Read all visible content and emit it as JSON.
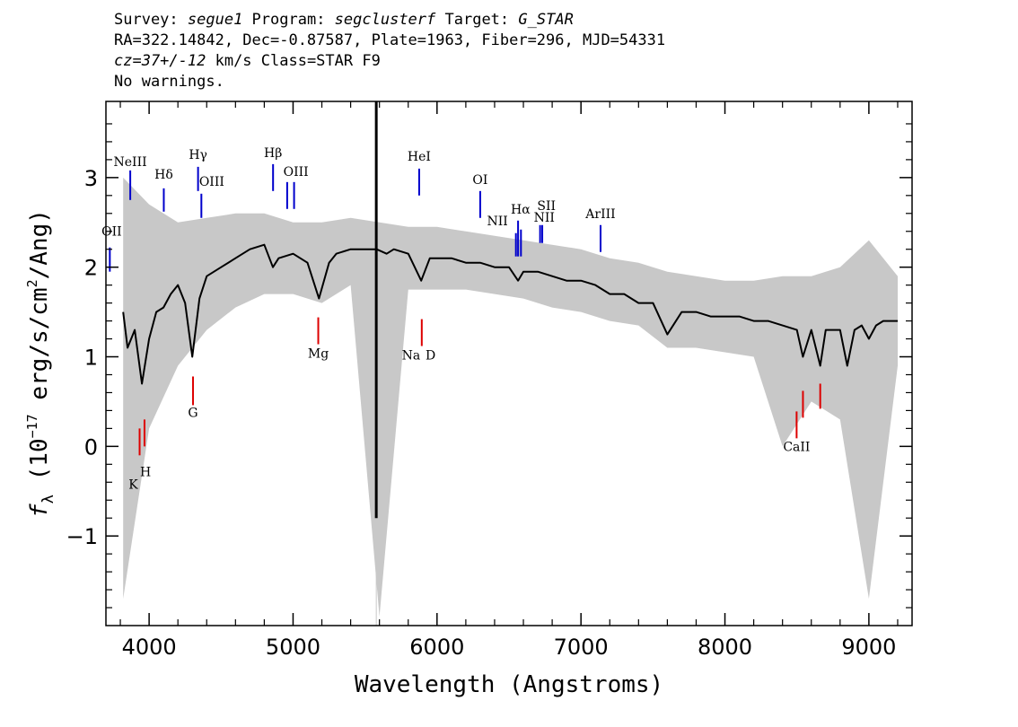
{
  "header": {
    "line1": {
      "survey_label": "Survey: ",
      "survey_value": "segue1",
      "program_label": " Program: ",
      "program_value": "segclusterf",
      "target_label": " Target: ",
      "target_value": "G_STAR"
    },
    "line2": "RA=322.14842, Dec=-0.87587, Plate=1963, Fiber=296, MJD=54331",
    "line3": {
      "cz_value": "cz=37+/-12",
      "rest": " km/s Class=STAR F9"
    },
    "line4": "No warnings."
  },
  "chart_data": {
    "type": "line",
    "xlabel": "Wavelength (Angstroms)",
    "ylabel": "f_λ (10^-17 erg/s/cm^2/Ang)",
    "ylabel_parts": {
      "f": "f",
      "lambda": "λ",
      "open": " (10",
      "exp": "−17",
      "mid": " erg/s/cm",
      "sq": "2",
      "close": "/Ang)"
    },
    "xlim": [
      3700,
      9300
    ],
    "ylim": [
      -2.0,
      3.85
    ],
    "x_ticks": [
      4000,
      5000,
      6000,
      7000,
      8000,
      9000
    ],
    "x_tick_labels": [
      "4000",
      "5000",
      "6000",
      "7000",
      "8000",
      "9000"
    ],
    "y_ticks": [
      -1,
      0,
      1,
      2,
      3
    ],
    "y_tick_labels": [
      "−1",
      "0",
      "1",
      "2",
      "3"
    ],
    "series": [
      {
        "role": "flux",
        "color": "#000000",
        "x": [
          3820,
          3850,
          3900,
          3950,
          4000,
          4050,
          4100,
          4150,
          4200,
          4250,
          4300,
          4350,
          4400,
          4500,
          4600,
          4700,
          4800,
          4860,
          4900,
          5000,
          5100,
          5180,
          5250,
          5300,
          5400,
          5500,
          5580,
          5650,
          5700,
          5800,
          5890,
          5950,
          6000,
          6100,
          6200,
          6300,
          6400,
          6500,
          6563,
          6600,
          6700,
          6800,
          6900,
          7000,
          7100,
          7200,
          7300,
          7400,
          7500,
          7600,
          7700,
          7800,
          7900,
          8000,
          8100,
          8200,
          8300,
          8400,
          8500,
          8542,
          8600,
          8662,
          8700,
          8800,
          8850,
          8900,
          8950,
          9000,
          9050,
          9100,
          9150,
          9200
        ],
        "y": [
          1.5,
          1.1,
          1.3,
          0.7,
          1.2,
          1.5,
          1.55,
          1.7,
          1.8,
          1.6,
          1.0,
          1.65,
          1.9,
          2.0,
          2.1,
          2.2,
          2.25,
          2.0,
          2.1,
          2.15,
          2.05,
          1.65,
          2.05,
          2.15,
          2.2,
          2.2,
          2.2,
          2.15,
          2.2,
          2.15,
          1.85,
          2.1,
          2.1,
          2.1,
          2.05,
          2.05,
          2.0,
          2.0,
          1.85,
          1.95,
          1.95,
          1.9,
          1.85,
          1.85,
          1.8,
          1.7,
          1.7,
          1.6,
          1.6,
          1.25,
          1.5,
          1.5,
          1.45,
          1.45,
          1.45,
          1.4,
          1.4,
          1.35,
          1.3,
          1.0,
          1.3,
          0.9,
          1.3,
          1.3,
          0.9,
          1.3,
          1.35,
          1.2,
          1.35,
          1.4,
          1.4,
          1.4
        ]
      },
      {
        "role": "error envelope (upper bound)",
        "color": "#c8c8c8",
        "x": [
          3820,
          4000,
          4200,
          4400,
          4600,
          4800,
          5000,
          5200,
          5400,
          5600,
          5800,
          6000,
          6200,
          6400,
          6600,
          6800,
          7000,
          7200,
          7400,
          7600,
          7800,
          8000,
          8200,
          8400,
          8600,
          8800,
          9000,
          9200
        ],
        "y": [
          3.0,
          2.7,
          2.5,
          2.55,
          2.6,
          2.6,
          2.5,
          2.5,
          2.55,
          2.5,
          2.45,
          2.45,
          2.4,
          2.35,
          2.3,
          2.25,
          2.2,
          2.1,
          2.05,
          1.95,
          1.9,
          1.85,
          1.85,
          1.9,
          1.9,
          2.0,
          2.3,
          1.9
        ]
      },
      {
        "role": "error envelope (lower bound)",
        "color": "#c8c8c8",
        "x": [
          3820,
          4000,
          4200,
          4400,
          4600,
          4800,
          5000,
          5200,
          5400,
          5600,
          5800,
          6000,
          6200,
          6400,
          6600,
          6800,
          7000,
          7200,
          7400,
          7600,
          7800,
          8000,
          8200,
          8400,
          8600,
          8800,
          9000,
          9200
        ],
        "y": [
          -1.7,
          0.2,
          0.9,
          1.3,
          1.55,
          1.7,
          1.7,
          1.6,
          1.8,
          -1.9,
          1.75,
          1.75,
          1.75,
          1.7,
          1.65,
          1.55,
          1.5,
          1.4,
          1.35,
          1.1,
          1.1,
          1.05,
          1.0,
          0.0,
          0.5,
          0.3,
          -1.7,
          0.9
        ]
      }
    ],
    "spike": {
      "x": 5578,
      "y_top": 3.85,
      "y_bottom": -0.8
    },
    "emission_lines": [
      {
        "label": "OII",
        "x": 3727,
        "y0": 1.95,
        "y1": 2.22,
        "lx": 3740,
        "ly": 2.35
      },
      {
        "label": "NeIII",
        "x": 3869,
        "y0": 2.75,
        "y1": 3.08,
        "lx": 3869,
        "ly": 3.13
      },
      {
        "label": "Hδ",
        "x": 4102,
        "y0": 2.62,
        "y1": 2.88,
        "lx": 4102,
        "ly": 2.99
      },
      {
        "label": "Hγ",
        "x": 4340,
        "y0": 2.85,
        "y1": 3.12,
        "lx": 4340,
        "ly": 3.21
      },
      {
        "label": "OIII",
        "x": 4363,
        "y0": 2.55,
        "y1": 2.82,
        "lx": 4435,
        "ly": 2.91
      },
      {
        "label": "Hβ",
        "x": 4861,
        "y0": 2.85,
        "y1": 3.15,
        "lx": 4861,
        "ly": 3.23
      },
      {
        "label": "OIII",
        "x": 4959,
        "y0": 2.65,
        "y1": 2.95,
        "lx": 5020,
        "ly": 3.02
      },
      {
        "label": "OIII",
        "x": 5007,
        "y0": 2.65,
        "y1": 2.95,
        "lx": null,
        "ly": null
      },
      {
        "label": "HeI",
        "x": 5876,
        "y0": 2.8,
        "y1": 3.1,
        "lx": 5876,
        "ly": 3.19
      },
      {
        "label": "OI",
        "x": 6300,
        "y0": 2.55,
        "y1": 2.85,
        "lx": 6300,
        "ly": 2.93
      },
      {
        "label": "NII",
        "x": 6548,
        "y0": 2.12,
        "y1": 2.38,
        "lx": 6420,
        "ly": 2.47
      },
      {
        "label": "Hα",
        "x": 6563,
        "y0": 2.12,
        "y1": 2.52,
        "lx": 6580,
        "ly": 2.6
      },
      {
        "label": "NII",
        "x": 6583,
        "y0": 2.12,
        "y1": 2.42,
        "lx": 6745,
        "ly": 2.51
      },
      {
        "label": "SII",
        "x": 6716,
        "y0": 2.27,
        "y1": 2.47,
        "lx": 6760,
        "ly": 2.64
      },
      {
        "label": "SII",
        "x": 6731,
        "y0": 2.27,
        "y1": 2.47,
        "lx": null,
        "ly": null
      },
      {
        "label": "ArIII",
        "x": 7136,
        "y0": 2.17,
        "y1": 2.47,
        "lx": 7136,
        "ly": 2.55
      }
    ],
    "absorption_lines": [
      {
        "label": "K",
        "x": 3934,
        "y0": -0.1,
        "y1": 0.2,
        "lx": 3890,
        "ly": -0.47
      },
      {
        "label": "H",
        "x": 3968,
        "y0": 0.0,
        "y1": 0.3,
        "lx": 3975,
        "ly": -0.33
      },
      {
        "label": "G",
        "x": 4305,
        "y0": 0.46,
        "y1": 0.78,
        "lx": 4305,
        "ly": 0.33
      },
      {
        "label": "Mg",
        "x": 5175,
        "y0": 1.14,
        "y1": 1.44,
        "lx": 5175,
        "ly": 0.99
      },
      {
        "label": "Na",
        "x": 5894,
        "y0": 1.12,
        "y1": 1.42,
        "lx": 5820,
        "ly": 0.97
      },
      {
        "label": "D",
        "x": null,
        "y0": null,
        "y1": null,
        "lx": 5955,
        "ly": 0.97
      },
      {
        "label": "CaII",
        "x": 8498,
        "y0": 0.09,
        "y1": 0.39,
        "lx": 8498,
        "ly": -0.05
      },
      {
        "label": "CaII",
        "x": 8542,
        "y0": 0.32,
        "y1": 0.62,
        "lx": null,
        "ly": null
      },
      {
        "label": "CaII",
        "x": 8662,
        "y0": 0.42,
        "y1": 0.7,
        "lx": null,
        "ly": null
      }
    ],
    "colors": {
      "flux": "#000000",
      "error": "#c8c8c8",
      "emission": "#0000cc",
      "absorption": "#dd0000"
    }
  }
}
